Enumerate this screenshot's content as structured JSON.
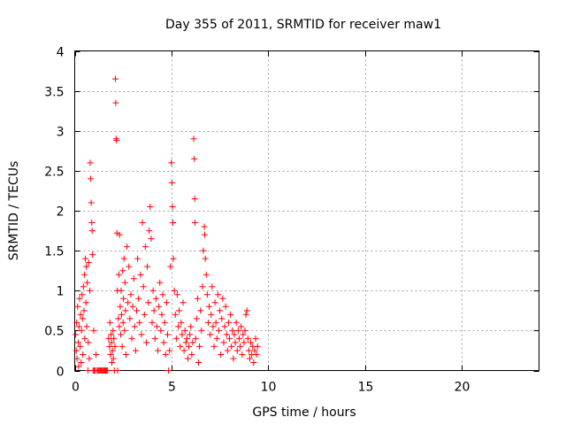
{
  "chart_data": {
    "type": "scatter",
    "title": "Day 355 of 2011, SRMTID for receiver maw1",
    "xlabel": "GPS time / hours",
    "ylabel": "SRMTID / TECUs",
    "xlim": [
      0,
      24
    ],
    "ylim": [
      0,
      4
    ],
    "xticks": [
      0,
      5,
      10,
      15,
      20
    ],
    "yticks": [
      0,
      0.5,
      1,
      1.5,
      2,
      2.5,
      3,
      3.5,
      4
    ],
    "ytick_labels": [
      "0",
      "0.5",
      "1",
      "1.5",
      "2",
      "2.5",
      "3",
      "3.5",
      "4"
    ],
    "grid": true,
    "marker": "+",
    "color": "#ff0000",
    "series": [
      {
        "name": "maw1",
        "points": [
          [
            0.05,
            0.45
          ],
          [
            0.08,
            0.25
          ],
          [
            0.1,
            0.6
          ],
          [
            0.12,
            0.15
          ],
          [
            0.15,
            0.8
          ],
          [
            0.18,
            0.35
          ],
          [
            0.2,
            0.05
          ],
          [
            0.22,
            0.55
          ],
          [
            0.25,
            0.9
          ],
          [
            0.28,
            0.3
          ],
          [
            0.3,
            0.7
          ],
          [
            0.33,
            0.1
          ],
          [
            0.35,
            0.5
          ],
          [
            0.38,
            0.95
          ],
          [
            0.4,
            0.65
          ],
          [
            0.42,
            0.2
          ],
          [
            0.45,
            1.05
          ],
          [
            0.48,
            0.75
          ],
          [
            0.5,
            1.2
          ],
          [
            0.52,
            0.4
          ],
          [
            0.55,
            1.4
          ],
          [
            0.58,
            0.85
          ],
          [
            0.6,
            1.3
          ],
          [
            0.62,
            0.55
          ],
          [
            0.65,
            1.1
          ],
          [
            0.68,
            0.0
          ],
          [
            0.7,
            0.35
          ],
          [
            0.72,
            1.35
          ],
          [
            0.75,
            0.15
          ],
          [
            0.78,
            1.0
          ],
          [
            0.8,
            2.6
          ],
          [
            0.82,
            2.4
          ],
          [
            0.85,
            2.1
          ],
          [
            0.88,
            1.85
          ],
          [
            0.9,
            1.75
          ],
          [
            0.92,
            1.45
          ],
          [
            0.95,
            0.0
          ],
          [
            0.98,
            0.5
          ],
          [
            1.0,
            0.0
          ],
          [
            1.05,
            0.0
          ],
          [
            1.1,
            0.2
          ],
          [
            1.15,
            0.0
          ],
          [
            1.2,
            0.0
          ],
          [
            1.25,
            0.0
          ],
          [
            1.3,
            0.0
          ],
          [
            1.35,
            0.0
          ],
          [
            1.4,
            0.0
          ],
          [
            1.45,
            0.0
          ],
          [
            1.5,
            0.0
          ],
          [
            1.55,
            0.0
          ],
          [
            1.6,
            0.0
          ],
          [
            1.65,
            0.0
          ],
          [
            1.7,
            0.0
          ],
          [
            1.75,
            0.4
          ],
          [
            1.8,
            0.3
          ],
          [
            1.82,
            0.6
          ],
          [
            1.85,
            0.2
          ],
          [
            1.88,
            0.45
          ],
          [
            1.9,
            0.35
          ],
          [
            1.92,
            0.1
          ],
          [
            1.95,
            0.25
          ],
          [
            1.98,
            0.5
          ],
          [
            2.0,
            0.15
          ],
          [
            2.02,
            0.4
          ],
          [
            2.05,
            0.0
          ],
          [
            2.08,
            0.3
          ],
          [
            2.1,
            3.65
          ],
          [
            2.12,
            3.35
          ],
          [
            2.14,
            2.9
          ],
          [
            2.16,
            2.88
          ],
          [
            2.18,
            1.72
          ],
          [
            2.2,
            1.0
          ],
          [
            2.22,
            0.0
          ],
          [
            2.25,
            0.65
          ],
          [
            2.28,
            1.2
          ],
          [
            2.3,
            0.55
          ],
          [
            2.32,
            1.7
          ],
          [
            2.35,
            0.8
          ],
          [
            2.38,
            0.45
          ],
          [
            2.4,
            1.0
          ],
          [
            2.42,
            0.7
          ],
          [
            2.45,
            0.3
          ],
          [
            2.48,
            1.25
          ],
          [
            2.5,
            0.6
          ],
          [
            2.52,
            0.9
          ],
          [
            2.55,
            1.4
          ],
          [
            2.58,
            0.5
          ],
          [
            2.6,
            1.1
          ],
          [
            2.62,
            0.75
          ],
          [
            2.65,
            0.2
          ],
          [
            2.7,
            1.55
          ],
          [
            2.75,
            0.85
          ],
          [
            2.8,
            1.3
          ],
          [
            2.85,
            0.65
          ],
          [
            2.9,
            0.95
          ],
          [
            2.95,
            0.4
          ],
          [
            3.0,
            0.8
          ],
          [
            3.05,
            1.15
          ],
          [
            3.1,
            0.55
          ],
          [
            3.15,
            0.25
          ],
          [
            3.2,
            0.75
          ],
          [
            3.25,
            1.4
          ],
          [
            3.3,
            0.9
          ],
          [
            3.35,
            0.6
          ],
          [
            3.4,
            1.2
          ],
          [
            3.45,
            0.45
          ],
          [
            3.5,
            1.85
          ],
          [
            3.55,
            1.05
          ],
          [
            3.6,
            0.7
          ],
          [
            3.65,
            1.55
          ],
          [
            3.7,
            0.35
          ],
          [
            3.75,
            1.3
          ],
          [
            3.8,
            0.85
          ],
          [
            3.85,
            1.75
          ],
          [
            3.9,
            2.05
          ],
          [
            3.95,
            1.65
          ],
          [
            4.0,
            0.6
          ],
          [
            4.05,
            1.0
          ],
          [
            4.1,
            0.75
          ],
          [
            4.15,
            0.4
          ],
          [
            4.2,
            0.9
          ],
          [
            4.25,
            0.55
          ],
          [
            4.3,
            0.25
          ],
          [
            4.35,
            0.8
          ],
          [
            4.4,
            1.1
          ],
          [
            4.45,
            0.5
          ],
          [
            4.5,
            0.7
          ],
          [
            4.55,
            0.95
          ],
          [
            4.6,
            0.35
          ],
          [
            4.65,
            0.6
          ],
          [
            4.7,
            0.2
          ],
          [
            4.75,
            0.85
          ],
          [
            4.8,
            0.45
          ],
          [
            4.85,
            0.0
          ],
          [
            4.9,
            0.25
          ],
          [
            4.95,
            1.3
          ],
          [
            5.0,
            2.6
          ],
          [
            5.02,
            2.35
          ],
          [
            5.05,
            2.05
          ],
          [
            5.08,
            1.85
          ],
          [
            5.1,
            1.4
          ],
          [
            5.15,
            1.0
          ],
          [
            5.2,
            0.7
          ],
          [
            5.25,
            0.4
          ],
          [
            5.3,
            0.95
          ],
          [
            5.35,
            0.55
          ],
          [
            5.4,
            0.75
          ],
          [
            5.45,
            0.3
          ],
          [
            5.5,
            0.6
          ],
          [
            5.55,
            0.45
          ],
          [
            5.6,
            0.85
          ],
          [
            5.65,
            0.25
          ],
          [
            5.7,
            0.5
          ],
          [
            5.75,
            0.35
          ],
          [
            5.8,
            0.4
          ],
          [
            5.85,
            0.15
          ],
          [
            5.9,
            0.3
          ],
          [
            5.95,
            0.45
          ],
          [
            6.0,
            0.55
          ],
          [
            6.05,
            0.2
          ],
          [
            6.1,
            0.35
          ],
          [
            6.15,
            2.9
          ],
          [
            6.18,
            2.65
          ],
          [
            6.2,
            2.15
          ],
          [
            6.22,
            1.85
          ],
          [
            6.25,
            0.4
          ],
          [
            6.3,
            0.65
          ],
          [
            6.35,
            0.9
          ],
          [
            6.4,
            0.1
          ],
          [
            6.45,
            0.3
          ],
          [
            6.5,
            0.75
          ],
          [
            6.55,
            0.5
          ],
          [
            6.6,
            1.05
          ],
          [
            6.65,
            1.5
          ],
          [
            6.7,
            1.8
          ],
          [
            6.72,
            1.7
          ],
          [
            6.75,
            1.4
          ],
          [
            6.8,
            1.2
          ],
          [
            6.85,
            0.95
          ],
          [
            6.9,
            0.6
          ],
          [
            6.95,
            0.8
          ],
          [
            7.0,
            0.45
          ],
          [
            7.05,
            0.7
          ],
          [
            7.1,
            1.05
          ],
          [
            7.15,
            0.55
          ],
          [
            7.2,
            0.3
          ],
          [
            7.25,
            0.85
          ],
          [
            7.3,
            0.6
          ],
          [
            7.35,
            0.4
          ],
          [
            7.4,
            0.95
          ],
          [
            7.45,
            0.5
          ],
          [
            7.5,
            0.75
          ],
          [
            7.55,
            0.2
          ],
          [
            7.6,
            0.65
          ],
          [
            7.65,
            0.9
          ],
          [
            7.7,
            0.35
          ],
          [
            7.75,
            0.55
          ],
          [
            7.8,
            0.8
          ],
          [
            7.85,
            0.45
          ],
          [
            7.9,
            0.25
          ],
          [
            7.95,
            0.6
          ],
          [
            8.0,
            0.4
          ],
          [
            8.05,
            0.7
          ],
          [
            8.1,
            0.3
          ],
          [
            8.15,
            0.5
          ],
          [
            8.2,
            0.15
          ],
          [
            8.25,
            0.45
          ],
          [
            8.3,
            0.35
          ],
          [
            8.35,
            0.6
          ],
          [
            8.4,
            0.25
          ],
          [
            8.45,
            0.5
          ],
          [
            8.5,
            0.4
          ],
          [
            8.55,
            0.3
          ],
          [
            8.6,
            0.55
          ],
          [
            8.65,
            0.2
          ],
          [
            8.7,
            0.45
          ],
          [
            8.75,
            0.35
          ],
          [
            8.8,
            0.5
          ],
          [
            8.85,
            0.7
          ],
          [
            8.9,
            0.75
          ],
          [
            8.95,
            0.4
          ],
          [
            9.0,
            0.25
          ],
          [
            9.05,
            0.15
          ],
          [
            9.1,
            0.35
          ],
          [
            9.15,
            0.2
          ],
          [
            9.2,
            0.3
          ],
          [
            9.25,
            0.1
          ],
          [
            9.3,
            0.25
          ],
          [
            9.35,
            0.4
          ],
          [
            9.4,
            0.2
          ],
          [
            9.45,
            0.3
          ]
        ]
      }
    ]
  }
}
